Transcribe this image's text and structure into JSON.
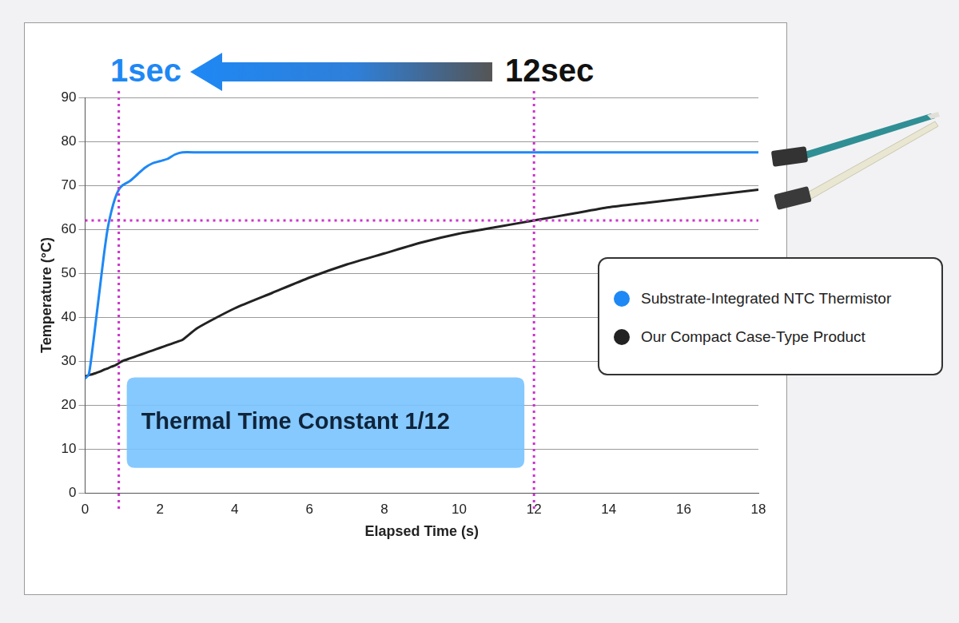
{
  "chart_data": {
    "type": "line",
    "x_label": "Elapsed Time (s)",
    "y_label": "Temperature (°C)",
    "x": [
      0,
      0.1,
      0.2,
      0.3,
      0.4,
      0.5,
      0.6,
      0.7,
      0.8,
      0.9,
      1.0,
      1.2,
      1.4,
      1.6,
      1.8,
      2,
      2.2,
      2.4,
      2.6,
      3,
      4,
      5,
      6,
      7,
      8,
      9,
      10,
      11,
      12,
      13,
      14,
      15,
      16,
      17,
      18
    ],
    "series": [
      {
        "name": "Substrate-Integrated NTC Thermistor",
        "color": "#1e88f5",
        "values": [
          26,
          27,
          33,
          40,
          47,
          54,
          60,
          64,
          67,
          69,
          70,
          71,
          72.5,
          74,
          75,
          75.5,
          76,
          77,
          77.5,
          77.5,
          77.5,
          77.5,
          77.5,
          77.5,
          77.5,
          77.5,
          77.5,
          77.5,
          77.5,
          77.5,
          77.5,
          77.5,
          77.5,
          77.5,
          77.5
        ]
      },
      {
        "name": "Our Compact Case-Type Product",
        "color": "#222222",
        "values": [
          26.5,
          26.8,
          27,
          27.3,
          27.6,
          28,
          28.3,
          28.7,
          29,
          29.5,
          30,
          30.6,
          31.2,
          31.8,
          32.4,
          33,
          33.6,
          34.2,
          34.8,
          37.5,
          42,
          45.5,
          49,
          52,
          54.5,
          57,
          59,
          60.5,
          62,
          63.5,
          65,
          66,
          67,
          68,
          69
        ]
      }
    ],
    "xlim": [
      0,
      18
    ],
    "xticks": [
      0,
      2,
      4,
      6,
      8,
      10,
      12,
      14,
      16,
      18
    ],
    "ylim": [
      0,
      90
    ],
    "yticks": [
      0,
      10,
      20,
      30,
      40,
      50,
      60,
      70,
      80,
      90
    ],
    "grid": "y",
    "legend": "right",
    "annotations": [
      "1sec",
      "12sec",
      "Thermal Time Constant 1/12"
    ],
    "reference_lines": {
      "x": [
        0.9,
        12
      ],
      "y": [
        62
      ]
    }
  }
}
